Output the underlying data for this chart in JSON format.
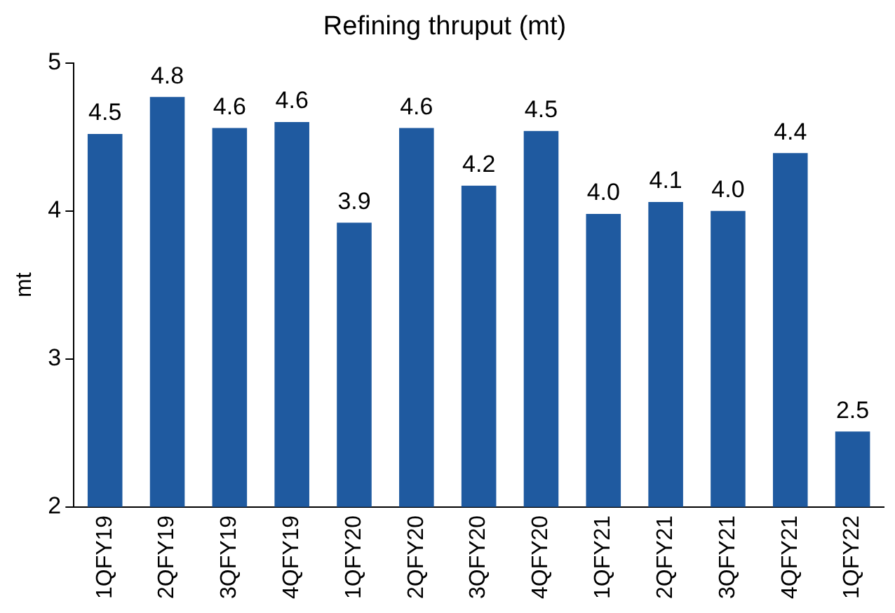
{
  "chart_data": {
    "type": "bar",
    "title": "Refining thruput (mt)",
    "ylabel": "mt",
    "categories": [
      "1QFY19",
      "2QFY19",
      "3QFY19",
      "4QFY19",
      "1QFY20",
      "2QFY20",
      "3QFY20",
      "4QFY20",
      "1QFY21",
      "2QFY21",
      "3QFY21",
      "4QFY21",
      "1QFY22"
    ],
    "values": [
      4.52,
      4.77,
      4.56,
      4.6,
      3.92,
      4.56,
      4.17,
      4.54,
      3.98,
      4.06,
      4.0,
      4.39,
      2.51
    ],
    "value_labels": [
      "4.5",
      "4.8",
      "4.6",
      "4.6",
      "3.9",
      "4.6",
      "4.2",
      "4.5",
      "4.0",
      "4.1",
      "4.0",
      "4.4",
      "2.5"
    ],
    "color": "#1f5aa0",
    "ylim": [
      2,
      5
    ],
    "yticks": [
      2,
      3,
      4,
      5
    ],
    "grid": false,
    "legend": false
  }
}
